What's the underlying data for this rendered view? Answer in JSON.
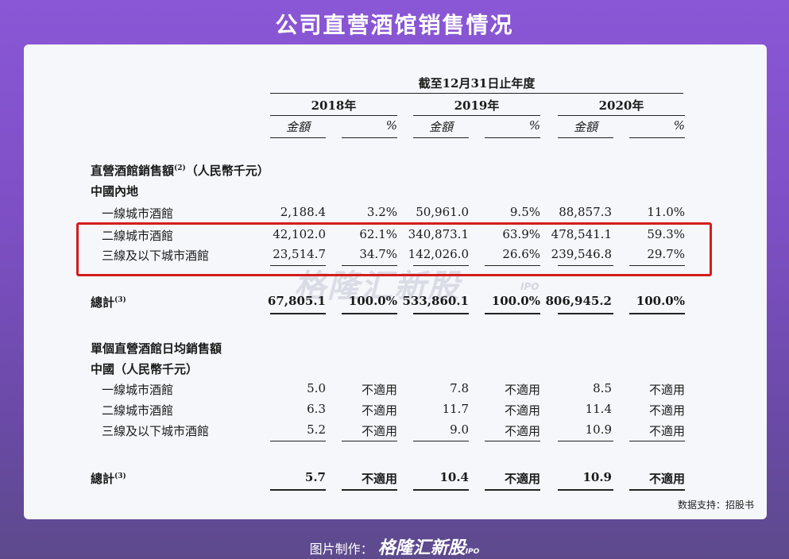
{
  "title": "公司直营酒馆销售情况",
  "table": {
    "period_header": "截至12月31日止年度",
    "years": [
      "2018年",
      "2019年",
      "2020年"
    ],
    "sub_amount": "金額",
    "sub_pct": "%",
    "section1_title": "直營酒館銷售額",
    "section1_note": "(2)",
    "section1_unit": "（人民幣千元）",
    "section1_region": "中國內地",
    "section1_rows": [
      {
        "label": "一線城市酒館",
        "v": [
          "2,188.4",
          "3.2%",
          "50,961.0",
          "9.5%",
          "88,857.3",
          "11.0%"
        ]
      },
      {
        "label": "二線城市酒館",
        "v": [
          "42,102.0",
          "62.1%",
          "340,873.1",
          "63.9%",
          "478,541.1",
          "59.3%"
        ]
      },
      {
        "label": "三線及以下城市酒館",
        "v": [
          "23,514.7",
          "34.7%",
          "142,026.0",
          "26.6%",
          "239,546.8",
          "29.7%"
        ]
      }
    ],
    "total1_label": "總計",
    "total1_note": "(3)",
    "total1": [
      "67,805.1",
      "100.0%",
      "533,860.1",
      "100.0%",
      "806,945.2",
      "100.0%"
    ],
    "section2_title": "單個直營酒館日均銷售額",
    "section2_region": "中國（人民幣千元）",
    "section2_rows": [
      {
        "label": "一線城市酒館",
        "v": [
          "5.0",
          "不適用",
          "7.8",
          "不適用",
          "8.5",
          "不適用"
        ]
      },
      {
        "label": "二線城市酒館",
        "v": [
          "6.3",
          "不適用",
          "11.7",
          "不適用",
          "11.4",
          "不適用"
        ]
      },
      {
        "label": "三線及以下城市酒館",
        "v": [
          "5.2",
          "不適用",
          "9.0",
          "不適用",
          "10.9",
          "不適用"
        ]
      }
    ],
    "total2_label": "總計",
    "total2_note": "(3)",
    "total2": [
      "5.7",
      "不適用",
      "10.4",
      "不適用",
      "10.9",
      "不適用"
    ]
  },
  "watermark": "格隆汇新股",
  "watermark_sub": "IPO",
  "source": "数据支持：招股书",
  "footer": {
    "label": "图片制作：",
    "brand": "格隆汇新股",
    "brand_sub": "IPO"
  }
}
